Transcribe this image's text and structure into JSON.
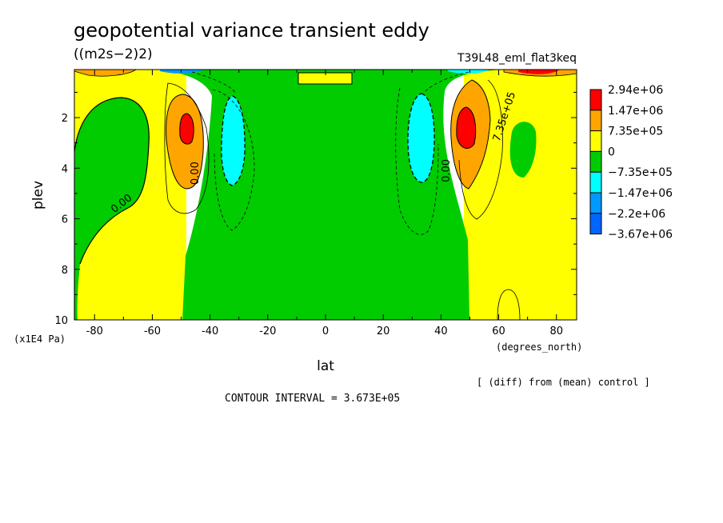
{
  "chart_data": {
    "type": "heatmap",
    "title": "geopotential variance transient eddy",
    "units": "((m2s−2)2)",
    "experiment": "T39L48_eml_flat3keq",
    "xlabel": "lat",
    "xunits": "(degrees_north)",
    "ylabel": "plev",
    "yunits": "(x1E4 Pa)",
    "xlim": [
      -87,
      87
    ],
    "ylim": [
      10,
      0.1
    ],
    "x_ticks": [
      -80,
      -60,
      -40,
      -20,
      0,
      20,
      40,
      60,
      80
    ],
    "y_ticks": [
      2,
      4,
      6,
      8,
      10
    ],
    "legend": {
      "placement": "right",
      "levels": [
        "2.94e+06",
        "1.47e+06",
        "7.35e+05",
        "0",
        "−7.35e+05",
        "−1.47e+06",
        "−2.2e+06",
        "−3.67e+06"
      ],
      "colors": [
        "#ff0000",
        "#ff9900",
        "#ffa500",
        "#ffff00",
        "#00cc00",
        "#00ffff",
        "#0099ff",
        "#0066ff"
      ],
      "fills": [
        "#ff0000",
        "#ffa500",
        "#ffa500",
        "#ffff00",
        "#00cc00",
        "#00ffff",
        "#0099ff",
        "#0066ff"
      ]
    },
    "contour_labels": [
      {
        "text": "0.00",
        "lat": -70,
        "plev": 5.5,
        "angle": -38
      },
      {
        "text": "0.00",
        "lat": -44,
        "plev": 4.2,
        "angle": -90
      },
      {
        "text": "0.00",
        "lat": 43,
        "plev": 4.1,
        "angle": -90
      },
      {
        "text": "7.35e+05",
        "lat": 63,
        "plev": 2.0,
        "angle": -72
      }
    ],
    "regions": [
      {
        "value": "yellow",
        "lat": [
          -87,
          -50
        ],
        "plev": [
          0.1,
          10
        ]
      },
      {
        "value": "green",
        "lat": [
          -48,
          48
        ],
        "plev": [
          0.1,
          10
        ]
      },
      {
        "value": "yellow",
        "lat": [
          50,
          87
        ],
        "plev": [
          0.1,
          10
        ]
      },
      {
        "value": "orange",
        "lat": [
          -57,
          -44
        ],
        "plev": [
          1.0,
          4.5
        ]
      },
      {
        "value": "red",
        "lat": [
          -51,
          -47
        ],
        "plev": [
          1.9,
          3.0
        ]
      },
      {
        "value": "orange",
        "lat": [
          45,
          58
        ],
        "plev": [
          1.0,
          4.5
        ]
      },
      {
        "value": "red",
        "lat": [
          47,
          52
        ],
        "plev": [
          1.9,
          3.1
        ]
      },
      {
        "value": "cyan",
        "lat": [
          -37,
          -30
        ],
        "plev": [
          1.2,
          4.8
        ]
      },
      {
        "value": "cyan",
        "lat": [
          29,
          37
        ],
        "plev": [
          1.1,
          4.6
        ]
      },
      {
        "value": "green",
        "lat": [
          -85,
          -55
        ],
        "plev": [
          1.2,
          10
        ]
      },
      {
        "value": "green",
        "lat": [
          64,
          74
        ],
        "plev": [
          2.1,
          4.3
        ]
      }
    ]
  },
  "footer": {
    "note": "[ (diff) from (mean) control ]",
    "contour_interval": "CONTOUR INTERVAL = 3.673E+05"
  }
}
